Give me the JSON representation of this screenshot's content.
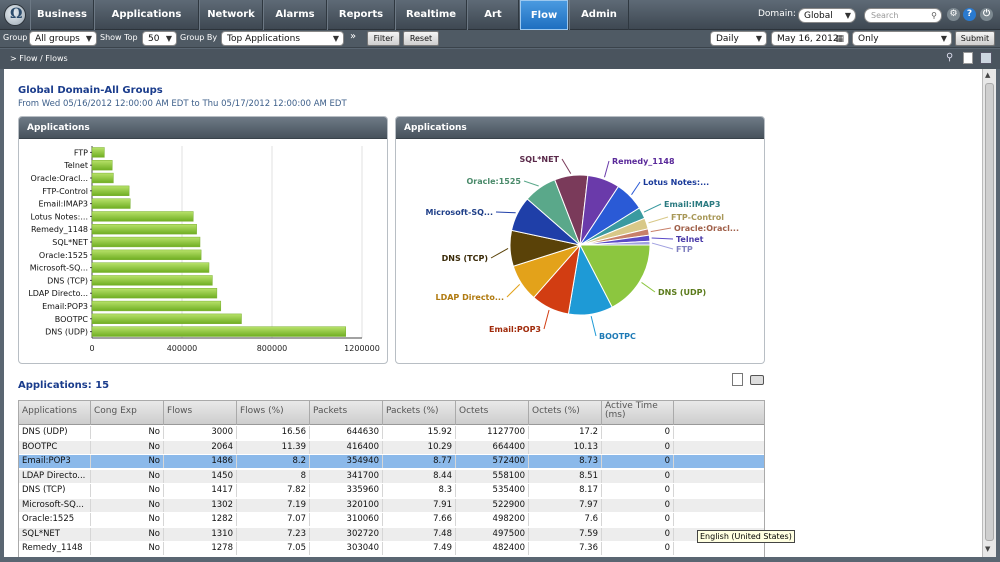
{
  "nav": {
    "tabs": [
      "Business",
      "Applications",
      "Network",
      "Alarms",
      "Reports",
      "Realtime",
      "Art",
      "Flow",
      "Admin"
    ],
    "active": "Flow",
    "domain_label": "Domain:",
    "domain_value": "Global",
    "search_placeholder": "Search"
  },
  "filterbar": {
    "group_label": "Group",
    "group_value": "All groups",
    "show_top_label": "Show Top",
    "show_top_value": "50",
    "group_by_label": "Group By",
    "group_by_value": "Top Applications",
    "filter_btn": "Filter",
    "reset_btn": "Reset",
    "period_value": "Daily",
    "date_value": "May 16, 2012",
    "only_value": "Only",
    "submit_btn": "Submit"
  },
  "breadcrumb": "> Flow / Flows",
  "page": {
    "title": "Global Domain-All Groups",
    "subtitle": "From Wed 05/16/2012 12:00:00 AM EDT to Thu 05/17/2012 12:00:00 AM EDT"
  },
  "bar_panel_title": "Applications",
  "pie_panel_title": "Applications",
  "chart_data": [
    {
      "type": "bar",
      "orientation": "horizontal",
      "categories": [
        "FTP",
        "Telnet",
        "Oracle:Oracl...",
        "FTP-Control",
        "Email:IMAP3",
        "Lotus Notes:...",
        "Remedy_1148",
        "SQL*NET",
        "Oracle:1525",
        "Microsoft-SQ...",
        "DNS (TCP)",
        "LDAP Directo...",
        "Email:POP3",
        "BOOTPC",
        "DNS (UDP)"
      ],
      "values": [
        55000,
        90000,
        95000,
        165000,
        170000,
        450000,
        465000,
        480000,
        485000,
        520000,
        535000,
        555000,
        572400,
        664400,
        1127700
      ],
      "xticks": [
        "0",
        "400000",
        "800000",
        "1200000"
      ],
      "xlim": [
        0,
        1200000
      ],
      "color": "#8cc63f"
    },
    {
      "type": "pie",
      "labels": [
        "DNS (UDP)",
        "BOOTPC",
        "Email:POP3",
        "LDAP Directo...",
        "DNS (TCP)",
        "Microsoft-SQ...",
        "Oracle:1525",
        "SQL*NET",
        "Remedy_1148",
        "Lotus Notes:...",
        "Email:IMAP3",
        "FTP-Control",
        "Oracle:Oracl...",
        "Telnet",
        "FTP"
      ],
      "values": [
        17.2,
        10.13,
        8.73,
        8.51,
        8.17,
        7.97,
        7.6,
        7.59,
        7.36,
        6.8,
        2.6,
        2.5,
        1.45,
        1.38,
        0.84
      ],
      "colors": [
        "#8cc63f",
        "#1e9ad6",
        "#d23d12",
        "#e3a21a",
        "#5a4208",
        "#1f3fa8",
        "#5aa88a",
        "#7a3a5a",
        "#6a3aaa",
        "#2a5ad6",
        "#3a9aa0",
        "#d8c888",
        "#c8806a",
        "#5a4ac8",
        "#a0a0e0"
      ],
      "label_colors": [
        "#5a7a1a",
        "#1e7ab6",
        "#a02a0a",
        "#b07a10",
        "#3a2a08",
        "#1f3f88",
        "#4a8a6a",
        "#5a2a4a",
        "#5a2a9a",
        "#1a3a9a",
        "#2a7a80",
        "#a89858",
        "#a0604a",
        "#4a3aa8",
        "#8080c0"
      ]
    }
  ],
  "apps_count_label": "Applications: 15",
  "table": {
    "columns": [
      "Applications",
      "Cong Exp",
      "Flows",
      "Flows (%)",
      "Packets",
      "Packets (%)",
      "Octets",
      "Octets (%)",
      "Active Time (ms)"
    ],
    "rows": [
      [
        "DNS (UDP)",
        "No",
        "3000",
        "16.56",
        "644630",
        "15.92",
        "1127700",
        "17.2",
        "0"
      ],
      [
        "BOOTPC",
        "No",
        "2064",
        "11.39",
        "416400",
        "10.29",
        "664400",
        "10.13",
        "0"
      ],
      [
        "Email:POP3",
        "No",
        "1486",
        "8.2",
        "354940",
        "8.77",
        "572400",
        "8.73",
        "0"
      ],
      [
        "LDAP Directo...",
        "No",
        "1450",
        "8",
        "341700",
        "8.44",
        "558100",
        "8.51",
        "0"
      ],
      [
        "DNS (TCP)",
        "No",
        "1417",
        "7.82",
        "335960",
        "8.3",
        "535400",
        "8.17",
        "0"
      ],
      [
        "Microsoft-SQ...",
        "No",
        "1302",
        "7.19",
        "320100",
        "7.91",
        "522900",
        "7.97",
        "0"
      ],
      [
        "Oracle:1525",
        "No",
        "1282",
        "7.07",
        "310060",
        "7.66",
        "498200",
        "7.6",
        "0"
      ],
      [
        "SQL*NET",
        "No",
        "1310",
        "7.23",
        "302720",
        "7.48",
        "497500",
        "7.59",
        "0"
      ],
      [
        "Remedy_1148",
        "No",
        "1278",
        "7.05",
        "303040",
        "7.49",
        "482400",
        "7.36",
        "0"
      ]
    ],
    "selected_row": 2
  },
  "tooltip": "English (United States)"
}
